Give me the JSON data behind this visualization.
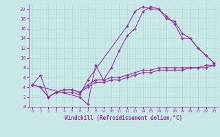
{
  "xlabel": "Windchill (Refroidissement éolien,°C)",
  "ylabel": "",
  "bg_color": "#c8e8e8",
  "line_color": "#993399",
  "xlim": [
    -0.5,
    23.5
  ],
  "ylim": [
    0,
    21
  ],
  "xticks": [
    0,
    1,
    2,
    3,
    4,
    5,
    6,
    7,
    8,
    9,
    10,
    11,
    12,
    13,
    14,
    15,
    16,
    17,
    18,
    19,
    20,
    21,
    22,
    23
  ],
  "yticks": [
    0,
    2,
    4,
    6,
    8,
    10,
    12,
    14,
    16,
    18,
    20
  ],
  "grid_color": "#aacccc",
  "lines": [
    {
      "x": [
        0,
        1,
        2,
        3,
        4,
        5,
        6,
        7,
        12,
        13,
        14,
        15,
        16,
        17,
        18,
        19,
        20,
        21,
        22,
        23
      ],
      "y": [
        4.5,
        6.5,
        2,
        3,
        3,
        3,
        2.5,
        5.5,
        16.5,
        19.5,
        20.5,
        20,
        20,
        18,
        17.5,
        15,
        14,
        12,
        10.5,
        9
      ]
    },
    {
      "x": [
        0,
        1,
        2,
        3,
        4,
        5,
        6,
        7,
        8,
        9,
        10,
        11,
        12,
        13,
        14,
        15,
        16,
        17,
        18,
        19,
        20,
        21,
        22,
        23
      ],
      "y": [
        4.5,
        4,
        2,
        3,
        3.5,
        3.5,
        3,
        4.5,
        5.5,
        5.5,
        6,
        6,
        6.5,
        7,
        7.5,
        7.5,
        8,
        8,
        8,
        8,
        8,
        8,
        8,
        8.5
      ]
    },
    {
      "x": [
        0,
        1,
        2,
        3,
        4,
        5,
        6,
        7,
        8,
        9,
        10,
        11,
        12,
        13,
        14,
        15,
        16,
        17,
        18,
        19,
        20,
        21,
        22,
        23
      ],
      "y": [
        4.5,
        4,
        2,
        3,
        3.5,
        3.5,
        3,
        4,
        5,
        5,
        5.5,
        5.5,
        6,
        6.5,
        7,
        7,
        7.5,
        7.5,
        7.5,
        7.5,
        8,
        8,
        8.5,
        8.5
      ]
    },
    {
      "x": [
        0,
        6,
        7,
        8,
        9,
        10,
        11,
        12,
        13,
        14,
        15,
        16,
        17,
        18,
        19,
        20,
        21,
        22,
        23
      ],
      "y": [
        4.5,
        2,
        0.5,
        8.5,
        5.5,
        8,
        11.5,
        14.5,
        16,
        19.5,
        20.5,
        20,
        18.5,
        17,
        14,
        14,
        12,
        10.5,
        9
      ]
    }
  ]
}
